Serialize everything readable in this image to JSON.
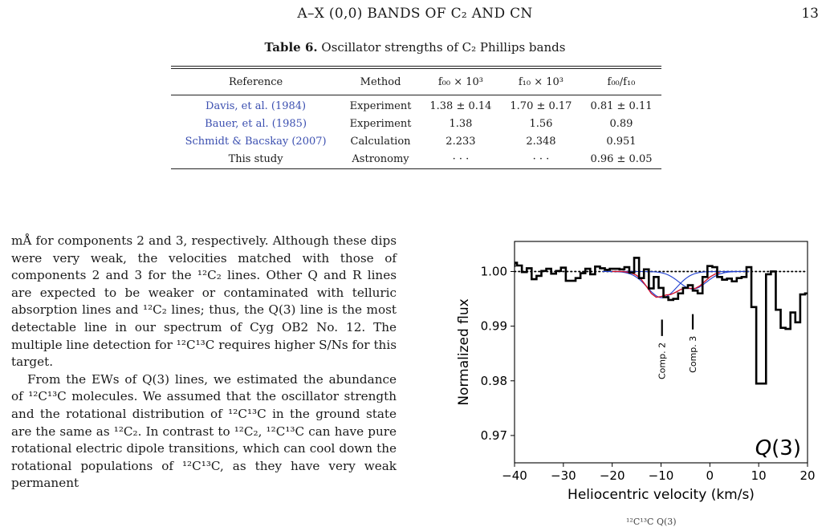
{
  "header": {
    "running_title": "A–X (0,0) BANDS OF C₂ AND CN",
    "page_number": "13"
  },
  "table": {
    "caption_label": "Table 6.",
    "caption_text": "Oscillator strengths of C₂ Phillips bands",
    "headers": [
      "Reference",
      "Method",
      "f₀₀ × 10³",
      "f₁₀ × 10³",
      "f₀₀/f₁₀"
    ],
    "rows": [
      [
        "Davis, et al. (1984)",
        "Experiment",
        "1.38 ± 0.14",
        "1.70 ± 0.17",
        "0.81 ± 0.11"
      ],
      [
        "Bauer, et al. (1985)",
        "Experiment",
        "1.38",
        "1.56",
        "0.89"
      ],
      [
        "Schmidt & Bacskay (2007)",
        "Calculation",
        "2.233",
        "2.348",
        "0.951"
      ],
      [
        "This study",
        "Astronomy",
        "· · ·",
        "· · ·",
        "0.96 ± 0.05"
      ]
    ]
  },
  "body": {
    "p1": "mÅ for components 2 and 3, respectively. Although these dips were very weak, the velocities matched with those of components 2 and 3 for the ¹²C₂ lines. Other Q and R lines are expected to be weaker or contaminated with telluric absorption lines and ¹²C₂ lines; thus, the Q(3) line is the most detectable line in our spectrum of Cyg OB2 No. 12. The multiple line detection for ¹²C¹³C requires higher S/Ns for this target.",
    "p2": "From the EWs of Q(3) lines, we estimated the abundance of ¹²C¹³C molecules. We assumed that the oscillator strength and the rotational distribution of ¹²C¹³C in the ground state are the same as ¹²C₂. In contrast to ¹²C₂, ¹²C¹³C can have pure rotational electric dipole transitions, which can cool down the rotational populations of ¹²C¹³C, as they have very weak permanent"
  },
  "figure": {
    "caption_fragment": "¹²C¹³C Q(3)"
  },
  "chart_data": {
    "type": "line",
    "xlabel": "Heliocentric velocity (km/s)",
    "ylabel": "Normalized flux",
    "xlim": [
      -40,
      20
    ],
    "ylim": [
      0.965,
      1.0055
    ],
    "xticks": [
      -40,
      -30,
      -20,
      -10,
      0,
      10,
      20
    ],
    "yticks": [
      0.97,
      0.98,
      0.99,
      1.0
    ],
    "ytick_labels": [
      "0.97",
      "0.98",
      "0.99",
      "1.00"
    ],
    "panel_label": "Q(3)",
    "reference_level": 1.0,
    "grid": false,
    "observed": {
      "style": "steps",
      "color": "#000000",
      "x": [
        -41,
        -40,
        -39,
        -38,
        -37,
        -36,
        -35,
        -34,
        -33,
        -32,
        -31,
        -30,
        -29,
        -28,
        -27,
        -26,
        -25,
        -24,
        -23,
        -22,
        -21,
        -20,
        -19,
        -18,
        -17,
        -16,
        -15,
        -14,
        -13,
        -12,
        -11,
        -10,
        -9,
        -8,
        -7,
        -6,
        -5,
        -4,
        -3,
        -2,
        -1,
        0,
        1,
        2,
        3,
        4,
        5,
        6,
        7,
        8,
        9,
        10,
        11,
        12,
        13,
        14,
        15,
        16,
        17,
        18,
        19,
        20
      ],
      "y": [
        1.0008,
        1.0016,
        1.0011,
        0.9999,
        1.0006,
        0.9986,
        0.9992,
        1.0001,
        1.0005,
        0.9996,
        1.0001,
        1.0007,
        0.9983,
        0.9983,
        0.9988,
        0.9997,
        1.0005,
        0.9995,
        1.0009,
        1.0006,
        1.0003,
        1.0005,
        1.0005,
        1.0004,
        1.0008,
        0.9998,
        1.0025,
        0.9988,
        1.0004,
        0.9969,
        0.999,
        0.997,
        0.9953,
        0.9948,
        0.995,
        0.996,
        0.997,
        0.9975,
        0.9965,
        0.996,
        0.999,
        1.001,
        1.0008,
        0.999,
        0.9985,
        0.9987,
        0.9982,
        0.9988,
        0.999,
        1.0008,
        0.9935,
        0.9795,
        0.9795,
        0.9995,
        1.0,
        0.993,
        0.9897,
        0.9895,
        0.9925,
        0.9907,
        0.9958,
        0.996
      ]
    },
    "fit": {
      "color": "#d0102a",
      "x": [
        -20,
        -19,
        -18,
        -17,
        -16,
        -15,
        -14,
        -13,
        -12,
        -11,
        -10,
        -9,
        -8,
        -7,
        -6,
        -5,
        -4,
        -3,
        -2,
        -1,
        0,
        1,
        2
      ],
      "y": [
        1.0,
        1.0,
        1.0,
        0.9999,
        0.9997,
        0.9993,
        0.9985,
        0.9973,
        0.996,
        0.9953,
        0.9954,
        0.9957,
        0.9958,
        0.9962,
        0.9967,
        0.997,
        0.9969,
        0.9969,
        0.9974,
        0.9982,
        0.999,
        0.9995,
        0.9998
      ]
    },
    "components": [
      {
        "name": "Comp. 2",
        "color": "#1f3fd0",
        "center": -9.8,
        "depth": 0.0048,
        "sigma": 3.0,
        "marker_velocity": -9.8,
        "marker_range": [
          0.9882,
          0.9912
        ]
      },
      {
        "name": "Comp. 3",
        "color": "#1f3fd0",
        "center": -3.5,
        "depth": 0.0032,
        "sigma": 2.8,
        "marker_velocity": -3.5,
        "marker_range": [
          0.9894,
          0.9922
        ]
      }
    ]
  }
}
